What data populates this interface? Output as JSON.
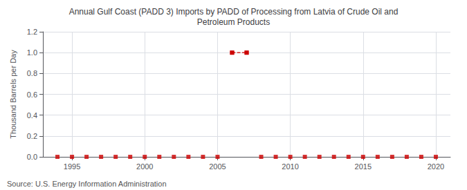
{
  "chart_data": {
    "type": "scatter",
    "title": "Annual Gulf Coast (PADD 3) Imports by PADD of Processing from Latvia of Crude Oil and\nPetroleum Products",
    "ylabel": "Thousand Barrels per Day",
    "annotations": [
      "Source: U.S. Energy Information Administration"
    ],
    "xlim": [
      1993,
      2021
    ],
    "ylim": [
      0,
      1.2
    ],
    "xticks": [
      1995,
      2000,
      2005,
      2010,
      2015,
      2020
    ],
    "yticks": [
      {
        "value": 0.0,
        "label": "0.0"
      },
      0.2,
      0.4,
      0.6,
      0.8,
      {
        "value": 1.0,
        "label": "1.0"
      },
      1.2
    ],
    "grid": true,
    "series": [
      {
        "type": "scatter",
        "marker": "square",
        "color": "#cc0000",
        "x": [
          1994,
          1995,
          1996,
          1997,
          1998,
          1999,
          2000,
          2001,
          2002,
          2003,
          2004,
          2005,
          2006,
          2007,
          2008,
          2009,
          2010,
          2011,
          2012,
          2013,
          2014,
          2015,
          2016,
          2017,
          2018,
          2019,
          2020
        ],
        "values": [
          0.0,
          0.0,
          0.0,
          0.0,
          0.0,
          0.0,
          0.0,
          0.0,
          0.0,
          0.0,
          0.0,
          0.0,
          1.0,
          1.0,
          0.0,
          0.0,
          0.0,
          0.0,
          0.0,
          0.0,
          0.0,
          0.0,
          0.0,
          0.0,
          0.0,
          0.0,
          0.0
        ]
      },
      {
        "type": "line",
        "marker": "square",
        "line_style": "dashed",
        "color": "#cc0000",
        "x": [
          2006,
          2007
        ],
        "values": [
          1.0,
          1.0
        ]
      }
    ]
  }
}
